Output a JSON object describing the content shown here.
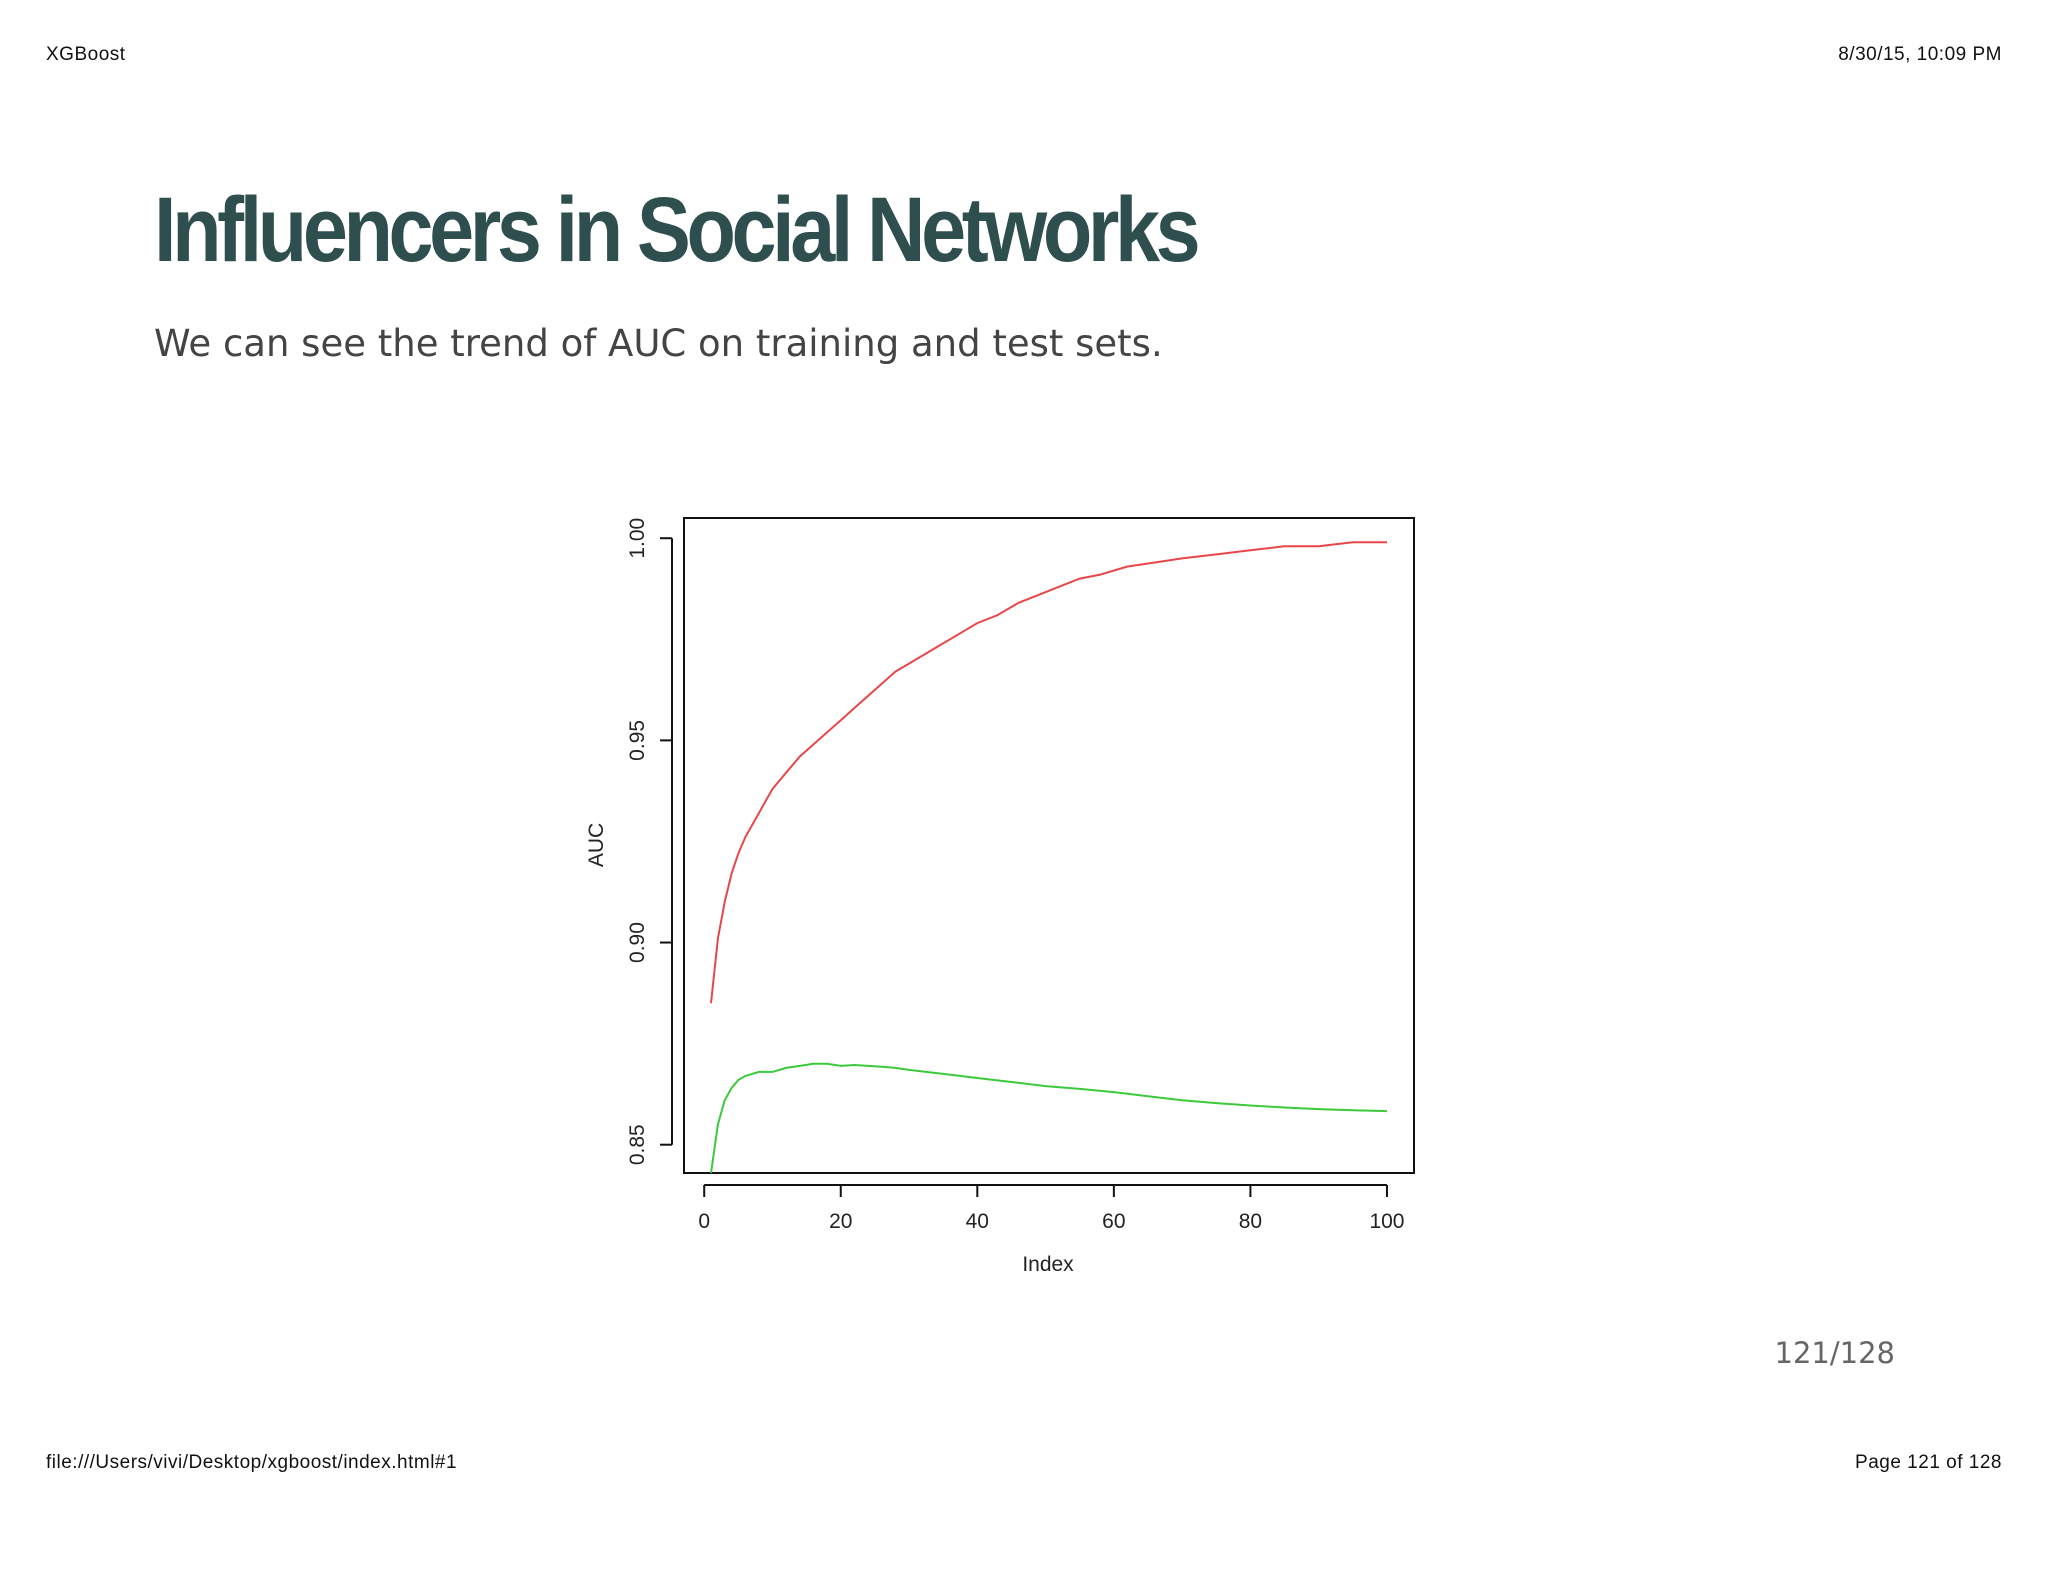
{
  "print": {
    "header_left": "XGBoost",
    "header_right": "8/30/15, 10:09 PM",
    "footer_left": "file:///Users/vivi/Desktop/xgboost/index.html#1",
    "footer_right": "Page 121 of 128"
  },
  "slide": {
    "title": "Influencers in Social Networks",
    "subtitle": "We can see the trend of AUC on training and test sets.",
    "page_number": "121/128"
  },
  "colors": {
    "title": "#2f4f4f",
    "train_line": "#e8474a",
    "test_line": "#3cc93c"
  },
  "chart_data": {
    "type": "line",
    "title": "",
    "xlabel": "Index",
    "ylabel": "AUC",
    "xlim": [
      1,
      100
    ],
    "ylim": [
      0.843,
      1.005
    ],
    "x_ticks": [
      0,
      20,
      40,
      60,
      80,
      100
    ],
    "x_tick_labels": [
      "0",
      "20",
      "40",
      "60",
      "80",
      "100"
    ],
    "y_ticks": [
      0.85,
      0.9,
      0.95,
      1.0
    ],
    "y_tick_labels": [
      "0.85",
      "0.90",
      "0.95",
      "1.00"
    ],
    "grid": false,
    "legend": "none",
    "series": [
      {
        "color": "#e8474a",
        "x": [
          1,
          2,
          3,
          4,
          5,
          6,
          8,
          10,
          12,
          14,
          16,
          18,
          20,
          22,
          24,
          26,
          28,
          30,
          32,
          34,
          36,
          38,
          40,
          43,
          46,
          49,
          52,
          55,
          58,
          62,
          66,
          70,
          75,
          80,
          85,
          90,
          95,
          100
        ],
        "y": [
          0.885,
          0.901,
          0.91,
          0.917,
          0.922,
          0.926,
          0.932,
          0.938,
          0.942,
          0.946,
          0.949,
          0.952,
          0.955,
          0.958,
          0.961,
          0.964,
          0.967,
          0.969,
          0.971,
          0.973,
          0.975,
          0.977,
          0.979,
          0.981,
          0.984,
          0.986,
          0.988,
          0.99,
          0.991,
          0.993,
          0.994,
          0.995,
          0.996,
          0.997,
          0.998,
          0.998,
          0.999,
          0.999
        ]
      },
      {
        "color": "#3cc93c",
        "x": [
          1,
          2,
          3,
          4,
          5,
          6,
          8,
          10,
          12,
          14,
          16,
          18,
          20,
          22,
          24,
          26,
          28,
          30,
          35,
          40,
          45,
          50,
          55,
          60,
          65,
          70,
          75,
          80,
          85,
          90,
          95,
          100
        ],
        "y": [
          0.843,
          0.855,
          0.861,
          0.864,
          0.866,
          0.867,
          0.868,
          0.868,
          0.869,
          0.8695,
          0.87,
          0.87,
          0.8695,
          0.8697,
          0.8695,
          0.8693,
          0.869,
          0.8685,
          0.8675,
          0.8665,
          0.8655,
          0.8645,
          0.8638,
          0.863,
          0.862,
          0.861,
          0.8603,
          0.8597,
          0.8592,
          0.8588,
          0.8585,
          0.8583
        ]
      }
    ]
  }
}
